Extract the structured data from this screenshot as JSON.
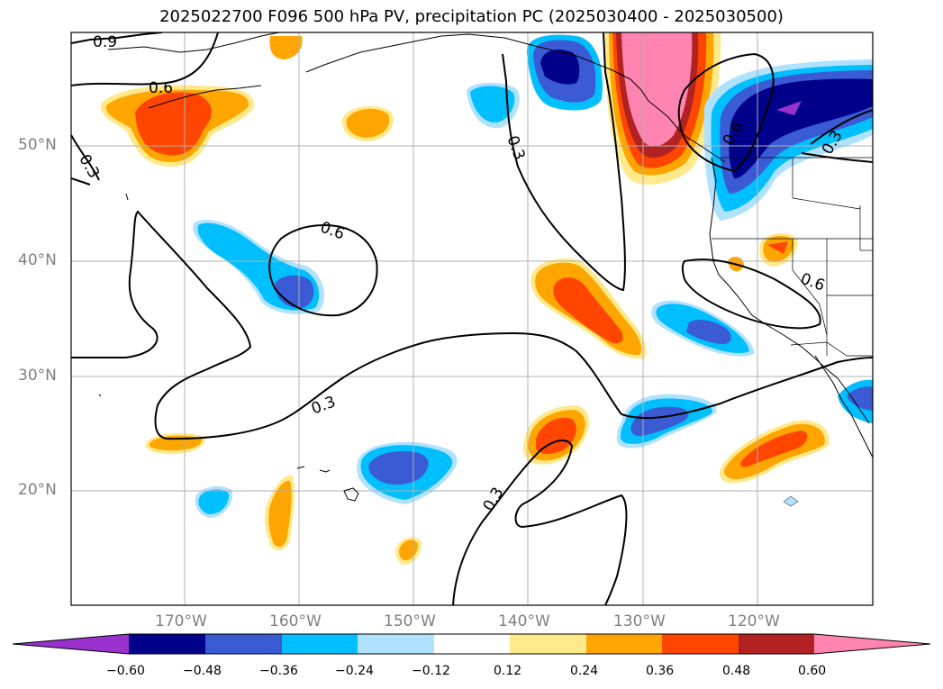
{
  "title": "2025022700 F096 500 hPa PV, precipitation PC (2025030400 - 2025030500)",
  "lat_labels": [
    "50°N",
    "40°N",
    "30°N",
    "20°N"
  ],
  "lon_labels": [
    "170°W",
    "160°W",
    "150°W",
    "140°W",
    "130°W",
    "120°W"
  ],
  "contour_labels": [
    "0.9",
    "0.6",
    "0.3",
    "0.3",
    "0.6",
    "0.3",
    "0.6",
    "0.3",
    "0.3",
    "0.6"
  ],
  "colorbar": {
    "ticks": [
      "−0.60",
      "−0.48",
      "−0.36",
      "−0.24",
      "−0.12",
      "0.12",
      "0.24",
      "0.36",
      "0.48",
      "0.60"
    ],
    "colors": [
      "#9932cc",
      "#00008b",
      "#3a5bd4",
      "#00bfff",
      "#b0e2ff",
      "#ffffff",
      "#ffe98a",
      "#ffa500",
      "#ff4500",
      "#b22222",
      "#ff85b0"
    ]
  }
}
